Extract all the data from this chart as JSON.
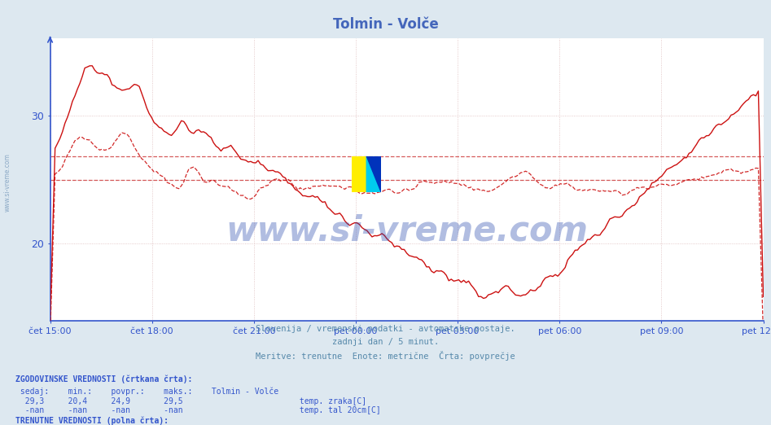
{
  "title": "Tolmin - Volče",
  "title_color": "#4466bb",
  "background_color": "#dde8f0",
  "plot_bg_color": "#ffffff",
  "x_labels": [
    "čet 15:00",
    "čet 18:00",
    "čet 21:00",
    "pet 00:00",
    "pet 03:00",
    "pet 06:00",
    "pet 09:00",
    "pet 12:00"
  ],
  "ylim": [
    14.0,
    36.0
  ],
  "yticks": [
    20,
    30
  ],
  "grid_color": "#ddbbbb",
  "axis_color": "#3355cc",
  "historical_avg_line": 26.8,
  "current_avg_line": 25.0,
  "subtitle_lines": [
    "Slovenija / vremenski podatki - avtomatske postaje.",
    "zadnji dan / 5 minut.",
    "Meritve: trenutne  Enote: metrične  Črta: povprečje"
  ],
  "subtitle_color": "#5588aa",
  "watermark_text": "www.si-vreme.com",
  "watermark_color": "#2244aa"
}
